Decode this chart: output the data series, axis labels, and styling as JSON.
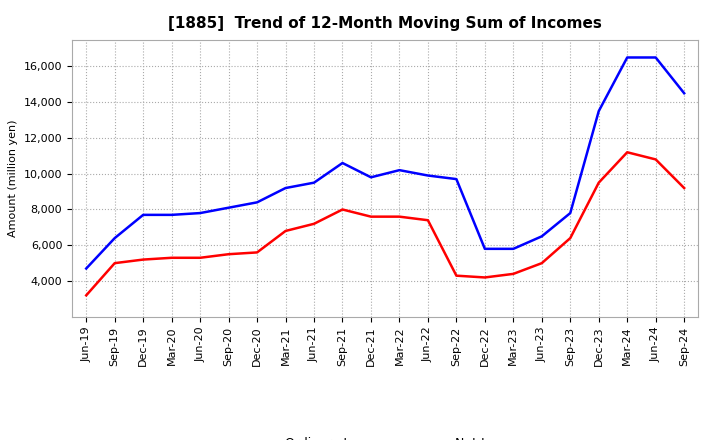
{
  "title": "[1885]  Trend of 12-Month Moving Sum of Incomes",
  "ylabel": "Amount (million yen)",
  "ylim": [
    2000,
    17500
  ],
  "yticks": [
    4000,
    6000,
    8000,
    10000,
    12000,
    14000,
    16000
  ],
  "x_labels": [
    "Jun-19",
    "Sep-19",
    "Dec-19",
    "Mar-20",
    "Jun-20",
    "Sep-20",
    "Dec-20",
    "Mar-21",
    "Jun-21",
    "Sep-21",
    "Dec-21",
    "Mar-22",
    "Jun-22",
    "Sep-22",
    "Dec-22",
    "Mar-23",
    "Jun-23",
    "Sep-23",
    "Dec-23",
    "Mar-24",
    "Jun-24",
    "Sep-24"
  ],
  "ordinary_income": [
    4700,
    6400,
    7700,
    7700,
    7800,
    8100,
    8400,
    9200,
    9500,
    10600,
    9800,
    10200,
    9900,
    9700,
    5800,
    5800,
    6500,
    7800,
    13500,
    16500,
    16500,
    14500
  ],
  "net_income": [
    3200,
    5000,
    5200,
    5300,
    5300,
    5500,
    5600,
    6800,
    7200,
    8000,
    7600,
    7600,
    7400,
    4300,
    4200,
    4400,
    5000,
    6400,
    9500,
    11200,
    10800,
    9200
  ],
  "ordinary_color": "#0000ff",
  "net_color": "#ff0000",
  "grid_color": "#aaaaaa",
  "background_color": "#ffffff",
  "title_fontsize": 11,
  "legend_fontsize": 9,
  "axis_fontsize": 8
}
